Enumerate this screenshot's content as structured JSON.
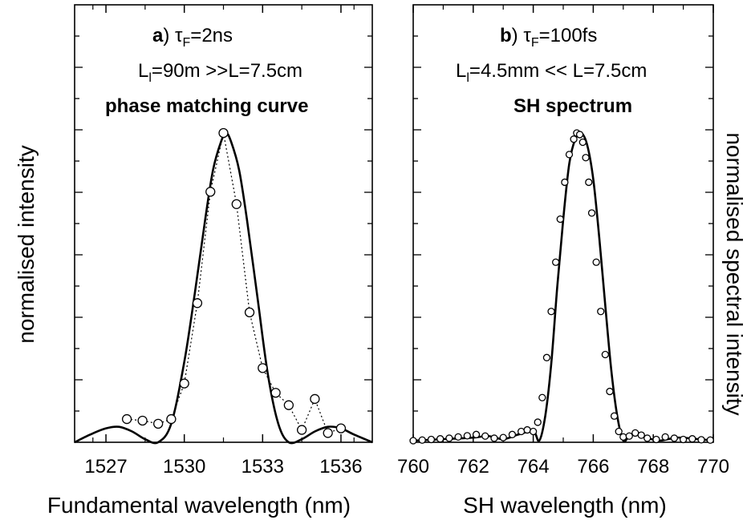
{
  "panel_a": {
    "label": "a",
    "tau_symbol": "τ",
    "tau_sub": "F",
    "tau_value": "=2ns",
    "lengths_L": "L",
    "lengths_sub": "l",
    "lengths_value": "=90m >>L=7.5cm",
    "subtitle": "phase matching curve",
    "xlabel": "Fundamental wavelength (nm)",
    "ylabel": "normalised intensity",
    "xticklabels": [
      "1527",
      "1530",
      "1533",
      "1536"
    ]
  },
  "panel_b": {
    "label": "b",
    "tau_symbol": "τ",
    "tau_sub": "F",
    "tau_value": "=100fs",
    "lengths_L": "L",
    "lengths_sub": "l",
    "lengths_value": "=4.5mm << L=7.5cm",
    "subtitle": "SH spectrum",
    "xlabel": "SH wavelength (nm)",
    "ylabel": "normalised spectral intensity",
    "xticklabels": [
      "760",
      "762",
      "764",
      "766",
      "768",
      "770"
    ]
  },
  "chart_data": [
    {
      "type": "line",
      "panel": "a",
      "xlim": [
        1525.8,
        1537.2
      ],
      "ylim": [
        0,
        1
      ],
      "xticks": [
        1527,
        1530,
        1533,
        1536
      ],
      "yaxis_tick_labels": "none",
      "series": [
        {
          "style": "solid-curve",
          "x": [
            1525.8,
            1526.4,
            1527.0,
            1527.5,
            1528.0,
            1528.5,
            1529.0,
            1529.5,
            1530.0,
            1530.4,
            1530.8,
            1531.1,
            1531.4,
            1531.6,
            1531.8,
            1532.1,
            1532.4,
            1532.8,
            1533.2,
            1533.6,
            1534.0,
            1534.5,
            1535.0,
            1535.5,
            1536.0,
            1536.5,
            1537.2
          ],
          "y": [
            0.0,
            0.025,
            0.045,
            0.05,
            0.035,
            0.01,
            0.0,
            0.06,
            0.26,
            0.48,
            0.72,
            0.88,
            0.97,
            1.0,
            0.97,
            0.88,
            0.72,
            0.47,
            0.22,
            0.06,
            0.0,
            0.01,
            0.035,
            0.05,
            0.045,
            0.025,
            0.0
          ]
        },
        {
          "style": "dotted-open-circles",
          "x": [
            1527.8,
            1528.4,
            1529.0,
            1529.5,
            1530.0,
            1530.5,
            1531.0,
            1531.5,
            1532.0,
            1532.5,
            1533.0,
            1533.5,
            1534.0,
            1534.5,
            1535.0,
            1535.5,
            1536.0
          ],
          "y": [
            0.075,
            0.07,
            0.06,
            0.075,
            0.19,
            0.45,
            0.81,
            1.0,
            0.77,
            0.42,
            0.24,
            0.16,
            0.12,
            0.04,
            0.14,
            0.03,
            0.045
          ]
        }
      ]
    },
    {
      "type": "line",
      "panel": "b",
      "xlim": [
        760,
        770
      ],
      "ylim": [
        0,
        1
      ],
      "xticks": [
        760,
        762,
        764,
        766,
        768,
        770
      ],
      "yaxis_tick_labels": "none",
      "series": [
        {
          "style": "solid-curve",
          "x": [
            760.0,
            761.0,
            762.0,
            762.5,
            763.0,
            763.5,
            764.0,
            764.2,
            764.4,
            764.6,
            764.8,
            765.0,
            765.2,
            765.4,
            765.6,
            765.8,
            766.0,
            766.2,
            766.4,
            766.6,
            766.8,
            767.0,
            767.2,
            767.5,
            767.8,
            768.2,
            768.8,
            769.5,
            770.0
          ],
          "y": [
            0.0,
            0.005,
            0.01,
            0.015,
            0.005,
            0.02,
            0.03,
            0.0,
            0.08,
            0.25,
            0.5,
            0.72,
            0.9,
            0.98,
            1.0,
            0.96,
            0.85,
            0.66,
            0.44,
            0.23,
            0.08,
            0.0,
            0.015,
            0.025,
            0.01,
            0.0,
            0.01,
            0.005,
            0.0
          ]
        },
        {
          "style": "dense-open-circles",
          "x": [
            760.0,
            760.3,
            760.6,
            760.9,
            761.2,
            761.5,
            761.8,
            762.1,
            762.4,
            762.7,
            763.0,
            763.3,
            763.6,
            763.8,
            764.0,
            764.15,
            764.3,
            764.45,
            764.6,
            764.75,
            764.9,
            765.05,
            765.2,
            765.35,
            765.45,
            765.55,
            765.65,
            765.75,
            765.85,
            765.95,
            766.1,
            766.25,
            766.4,
            766.55,
            766.7,
            766.85,
            767.0,
            767.2,
            767.4,
            767.6,
            767.8,
            768.1,
            768.4,
            768.7,
            769.0,
            769.3,
            769.6,
            769.9
          ],
          "y": [
            0.0,
            0.002,
            0.004,
            0.006,
            0.008,
            0.012,
            0.016,
            0.02,
            0.015,
            0.008,
            0.01,
            0.02,
            0.03,
            0.035,
            0.03,
            0.06,
            0.14,
            0.27,
            0.42,
            0.58,
            0.72,
            0.84,
            0.93,
            0.98,
            1.0,
            0.995,
            0.97,
            0.92,
            0.84,
            0.74,
            0.58,
            0.42,
            0.28,
            0.16,
            0.08,
            0.03,
            0.012,
            0.015,
            0.025,
            0.018,
            0.008,
            0.004,
            0.012,
            0.008,
            0.004,
            0.006,
            0.003,
            0.002
          ]
        }
      ]
    }
  ]
}
